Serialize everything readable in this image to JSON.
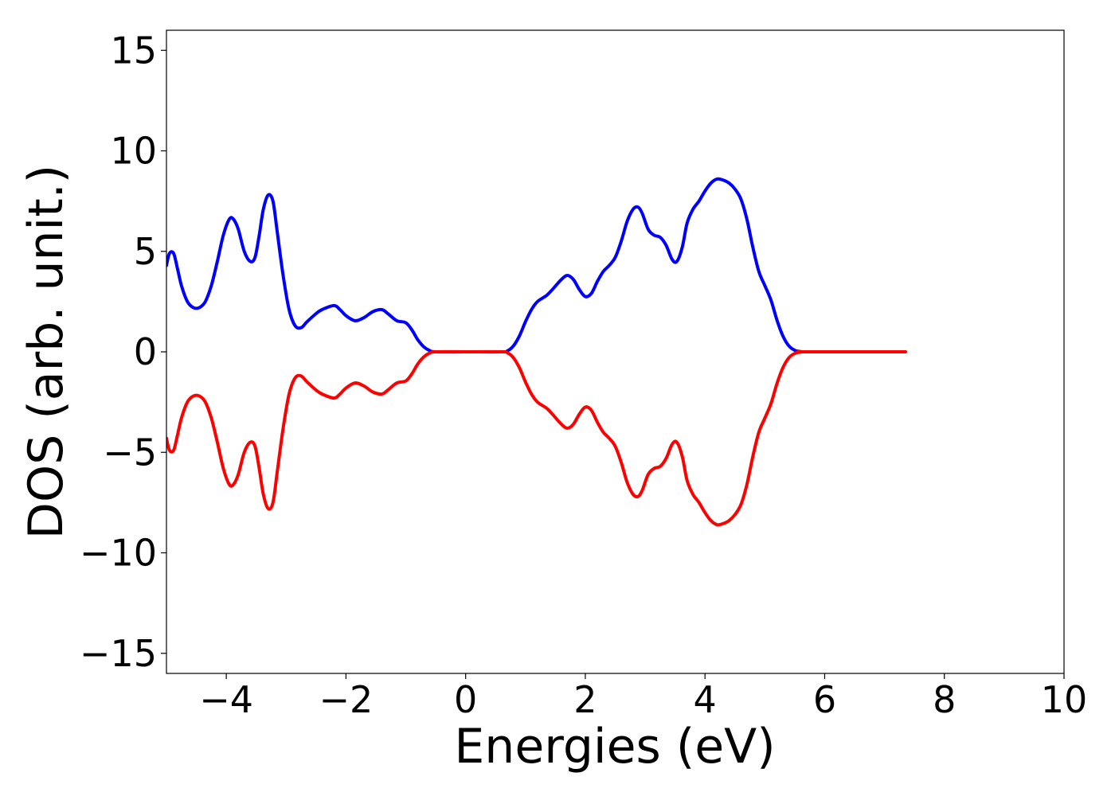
{
  "chart_data": {
    "type": "line",
    "title": "",
    "xlabel": "Energies (eV)",
    "ylabel": "DOS (arb. unit.)",
    "xlim": [
      -5,
      10
    ],
    "ylim": [
      -16,
      16
    ],
    "x_ticks": [
      -4,
      -2,
      0,
      2,
      4,
      6,
      8,
      10
    ],
    "x_tick_labels": [
      "−4",
      "−2",
      "0",
      "2",
      "4",
      "6",
      "8",
      "10"
    ],
    "y_ticks": [
      15,
      10,
      5,
      0,
      -5,
      -10,
      -15
    ],
    "y_tick_labels": [
      "15",
      "10",
      "5",
      "0",
      "−5",
      "−10",
      "−15"
    ],
    "grid": false,
    "legend": "none",
    "series": [
      {
        "color": "#0000ff",
        "points": [
          [
            -5.0,
            4.3
          ],
          [
            -4.95,
            4.9
          ],
          [
            -4.88,
            4.9
          ],
          [
            -4.82,
            4.2
          ],
          [
            -4.75,
            3.3
          ],
          [
            -4.65,
            2.5
          ],
          [
            -4.55,
            2.2
          ],
          [
            -4.45,
            2.2
          ],
          [
            -4.35,
            2.5
          ],
          [
            -4.25,
            3.3
          ],
          [
            -4.15,
            4.5
          ],
          [
            -4.05,
            5.8
          ],
          [
            -3.95,
            6.6
          ],
          [
            -3.88,
            6.6
          ],
          [
            -3.8,
            6.1
          ],
          [
            -3.7,
            5.0
          ],
          [
            -3.6,
            4.5
          ],
          [
            -3.52,
            4.7
          ],
          [
            -3.45,
            5.8
          ],
          [
            -3.38,
            7.1
          ],
          [
            -3.3,
            7.8
          ],
          [
            -3.22,
            7.5
          ],
          [
            -3.15,
            6.0
          ],
          [
            -3.05,
            3.8
          ],
          [
            -2.95,
            2.1
          ],
          [
            -2.85,
            1.3
          ],
          [
            -2.75,
            1.2
          ],
          [
            -2.65,
            1.5
          ],
          [
            -2.5,
            1.9
          ],
          [
            -2.4,
            2.1
          ],
          [
            -2.2,
            2.3
          ],
          [
            -2.1,
            2.1
          ],
          [
            -2.0,
            1.8
          ],
          [
            -1.85,
            1.55
          ],
          [
            -1.7,
            1.7
          ],
          [
            -1.55,
            2.0
          ],
          [
            -1.4,
            2.1
          ],
          [
            -1.3,
            1.9
          ],
          [
            -1.15,
            1.55
          ],
          [
            -1.0,
            1.45
          ],
          [
            -0.9,
            1.1
          ],
          [
            -0.8,
            0.6
          ],
          [
            -0.7,
            0.25
          ],
          [
            -0.6,
            0.06
          ],
          [
            -0.5,
            0.0
          ],
          [
            0.0,
            0.0
          ],
          [
            0.6,
            0.0
          ],
          [
            0.7,
            0.05
          ],
          [
            0.8,
            0.3
          ],
          [
            0.9,
            0.8
          ],
          [
            1.0,
            1.5
          ],
          [
            1.1,
            2.1
          ],
          [
            1.2,
            2.5
          ],
          [
            1.35,
            2.8
          ],
          [
            1.45,
            3.1
          ],
          [
            1.6,
            3.6
          ],
          [
            1.7,
            3.8
          ],
          [
            1.8,
            3.6
          ],
          [
            1.9,
            3.1
          ],
          [
            2.0,
            2.75
          ],
          [
            2.1,
            2.9
          ],
          [
            2.2,
            3.5
          ],
          [
            2.3,
            4.0
          ],
          [
            2.4,
            4.3
          ],
          [
            2.5,
            4.7
          ],
          [
            2.6,
            5.5
          ],
          [
            2.7,
            6.5
          ],
          [
            2.8,
            7.1
          ],
          [
            2.88,
            7.2
          ],
          [
            2.95,
            6.9
          ],
          [
            3.05,
            6.1
          ],
          [
            3.15,
            5.8
          ],
          [
            3.25,
            5.7
          ],
          [
            3.35,
            5.3
          ],
          [
            3.45,
            4.6
          ],
          [
            3.53,
            4.5
          ],
          [
            3.62,
            5.2
          ],
          [
            3.7,
            6.4
          ],
          [
            3.8,
            7.1
          ],
          [
            3.9,
            7.5
          ],
          [
            4.0,
            8.0
          ],
          [
            4.1,
            8.4
          ],
          [
            4.2,
            8.6
          ],
          [
            4.3,
            8.55
          ],
          [
            4.4,
            8.4
          ],
          [
            4.5,
            8.1
          ],
          [
            4.6,
            7.6
          ],
          [
            4.7,
            6.6
          ],
          [
            4.8,
            5.2
          ],
          [
            4.9,
            4.0
          ],
          [
            5.0,
            3.3
          ],
          [
            5.1,
            2.6
          ],
          [
            5.2,
            1.6
          ],
          [
            5.3,
            0.8
          ],
          [
            5.4,
            0.3
          ],
          [
            5.5,
            0.08
          ],
          [
            5.6,
            0.01
          ],
          [
            5.7,
            0.0
          ],
          [
            7.35,
            0.0
          ]
        ]
      },
      {
        "color": "#ff0000",
        "points": [
          [
            -5.0,
            -4.3
          ],
          [
            -4.95,
            -4.9
          ],
          [
            -4.88,
            -4.9
          ],
          [
            -4.82,
            -4.2
          ],
          [
            -4.75,
            -3.3
          ],
          [
            -4.65,
            -2.5
          ],
          [
            -4.55,
            -2.2
          ],
          [
            -4.45,
            -2.2
          ],
          [
            -4.35,
            -2.5
          ],
          [
            -4.25,
            -3.3
          ],
          [
            -4.15,
            -4.5
          ],
          [
            -4.05,
            -5.8
          ],
          [
            -3.95,
            -6.6
          ],
          [
            -3.88,
            -6.6
          ],
          [
            -3.8,
            -6.1
          ],
          [
            -3.7,
            -5.0
          ],
          [
            -3.6,
            -4.5
          ],
          [
            -3.52,
            -4.7
          ],
          [
            -3.45,
            -5.8
          ],
          [
            -3.38,
            -7.1
          ],
          [
            -3.3,
            -7.8
          ],
          [
            -3.22,
            -7.5
          ],
          [
            -3.15,
            -6.0
          ],
          [
            -3.05,
            -3.8
          ],
          [
            -2.95,
            -2.1
          ],
          [
            -2.85,
            -1.3
          ],
          [
            -2.75,
            -1.2
          ],
          [
            -2.65,
            -1.5
          ],
          [
            -2.5,
            -1.9
          ],
          [
            -2.4,
            -2.1
          ],
          [
            -2.2,
            -2.3
          ],
          [
            -2.1,
            -2.1
          ],
          [
            -2.0,
            -1.8
          ],
          [
            -1.85,
            -1.55
          ],
          [
            -1.7,
            -1.7
          ],
          [
            -1.55,
            -2.0
          ],
          [
            -1.4,
            -2.1
          ],
          [
            -1.3,
            -1.9
          ],
          [
            -1.15,
            -1.55
          ],
          [
            -1.0,
            -1.45
          ],
          [
            -0.9,
            -1.1
          ],
          [
            -0.8,
            -0.6
          ],
          [
            -0.7,
            -0.25
          ],
          [
            -0.6,
            -0.06
          ],
          [
            -0.5,
            0.0
          ],
          [
            0.0,
            0.0
          ],
          [
            0.6,
            0.0
          ],
          [
            0.7,
            -0.05
          ],
          [
            0.8,
            -0.3
          ],
          [
            0.9,
            -0.8
          ],
          [
            1.0,
            -1.5
          ],
          [
            1.1,
            -2.1
          ],
          [
            1.2,
            -2.5
          ],
          [
            1.35,
            -2.8
          ],
          [
            1.45,
            -3.1
          ],
          [
            1.6,
            -3.6
          ],
          [
            1.7,
            -3.8
          ],
          [
            1.8,
            -3.6
          ],
          [
            1.9,
            -3.1
          ],
          [
            2.0,
            -2.75
          ],
          [
            2.1,
            -2.9
          ],
          [
            2.2,
            -3.5
          ],
          [
            2.3,
            -4.0
          ],
          [
            2.4,
            -4.3
          ],
          [
            2.5,
            -4.7
          ],
          [
            2.6,
            -5.5
          ],
          [
            2.7,
            -6.5
          ],
          [
            2.8,
            -7.1
          ],
          [
            2.88,
            -7.2
          ],
          [
            2.95,
            -6.9
          ],
          [
            3.05,
            -6.1
          ],
          [
            3.15,
            -5.8
          ],
          [
            3.25,
            -5.7
          ],
          [
            3.35,
            -5.3
          ],
          [
            3.45,
            -4.6
          ],
          [
            3.53,
            -4.5
          ],
          [
            3.62,
            -5.2
          ],
          [
            3.7,
            -6.4
          ],
          [
            3.8,
            -7.1
          ],
          [
            3.9,
            -7.5
          ],
          [
            4.0,
            -8.0
          ],
          [
            4.1,
            -8.4
          ],
          [
            4.2,
            -8.6
          ],
          [
            4.3,
            -8.55
          ],
          [
            4.4,
            -8.4
          ],
          [
            4.5,
            -8.1
          ],
          [
            4.6,
            -7.6
          ],
          [
            4.7,
            -6.6
          ],
          [
            4.8,
            -5.2
          ],
          [
            4.9,
            -4.0
          ],
          [
            5.0,
            -3.3
          ],
          [
            5.1,
            -2.6
          ],
          [
            5.2,
            -1.6
          ],
          [
            5.3,
            -0.8
          ],
          [
            5.4,
            -0.3
          ],
          [
            5.5,
            -0.08
          ],
          [
            5.6,
            -0.01
          ],
          [
            5.7,
            0.0
          ],
          [
            7.35,
            0.0
          ]
        ]
      }
    ]
  }
}
